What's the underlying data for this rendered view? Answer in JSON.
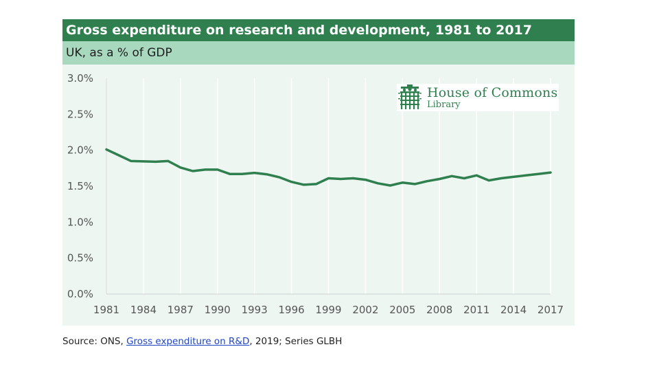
{
  "chart_data": {
    "type": "line",
    "title": "Gross expenditure on research and development, 1981 to 2017",
    "subtitle": "UK, as a % of GDP",
    "xlabel": "",
    "ylabel": "",
    "ylim": [
      0,
      3
    ],
    "xlim": [
      1981,
      2017
    ],
    "grid": {
      "vertical": true,
      "horizontal": false
    },
    "yticks": [
      "0.0%",
      "0.5%",
      "1.0%",
      "1.5%",
      "2.0%",
      "2.5%",
      "3.0%"
    ],
    "xticks": [
      "1981",
      "1984",
      "1987",
      "1990",
      "1993",
      "1996",
      "1999",
      "2002",
      "2005",
      "2008",
      "2011",
      "2014",
      "2017"
    ],
    "series": [
      {
        "color": "#2f7f4f",
        "x": [
          1981,
          1982,
          1983,
          1984,
          1985,
          1986,
          1987,
          1988,
          1989,
          1990,
          1991,
          1992,
          1993,
          1994,
          1995,
          1996,
          1997,
          1998,
          1999,
          2000,
          2001,
          2002,
          2003,
          2004,
          2005,
          2006,
          2007,
          2008,
          2009,
          2010,
          2011,
          2012,
          2013,
          2014,
          2015,
          2016,
          2017
        ],
        "values": [
          2.01,
          1.93,
          1.85,
          1.845,
          1.84,
          1.85,
          1.76,
          1.71,
          1.73,
          1.73,
          1.67,
          1.67,
          1.685,
          1.665,
          1.625,
          1.56,
          1.52,
          1.53,
          1.61,
          1.6,
          1.61,
          1.59,
          1.54,
          1.51,
          1.55,
          1.53,
          1.57,
          1.6,
          1.64,
          1.61,
          1.65,
          1.58,
          1.61,
          1.63,
          1.65,
          1.67,
          1.69
        ]
      }
    ]
  },
  "logo": {
    "line1": "House of Commons",
    "line2": "Library",
    "icon": "portcullis-icon",
    "color": "#2f7f4f"
  },
  "source": {
    "prefix": "Source: ONS, ",
    "link": "Gross expenditure on R&D",
    "suffix": ", 2019; Series GLBH"
  },
  "colors": {
    "title_bg": "#2f7f4f",
    "subtitle_bg": "#a8d9bf",
    "plot_bg": "#edf6f0",
    "line": "#2f7f4f"
  }
}
